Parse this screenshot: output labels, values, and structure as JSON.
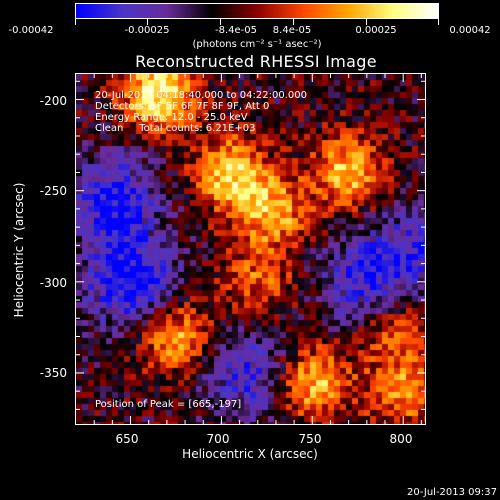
{
  "colorbar": {
    "ticks": [
      "-0.00042",
      "-0.00025",
      "-8.4e-05",
      "8.4e-05",
      "0.00025",
      "0.00042"
    ],
    "units": "(photons cm⁻² s⁻¹ asec⁻²)"
  },
  "plot": {
    "title": "Reconstructed RHESSI Image",
    "annotations": {
      "time": "20-Jul-2013 04:18:40.000 to 04:22:00.000",
      "detectors": "Detectors: 3F 5F 6F 7F 8F 9F, Att 0",
      "energy": "Energy Range: 12.0 - 25.0 keV",
      "clean": "Clean     Total counts: 6.21E+03",
      "peak": "Position of Peak = [665,-197]"
    },
    "xlabel": "Heliocentric X (arcsec)",
    "ylabel": "Heliocentric Y (arcsec)",
    "xticks": [
      "650",
      "700",
      "750",
      "800"
    ],
    "yticks": [
      "-200",
      "-250",
      "-300",
      "-350"
    ]
  },
  "chart_data": {
    "type": "heatmap",
    "title": "Reconstructed RHESSI Image",
    "xlabel": "Heliocentric X (arcsec)",
    "ylabel": "Heliocentric Y (arcsec)",
    "xlim": [
      620,
      812
    ],
    "ylim": [
      -378,
      -186
    ],
    "zlim": [
      -0.00042,
      0.00042
    ],
    "peak": [
      665,
      -197
    ],
    "colormap": [
      "#0000ff",
      "#4a35c8",
      "#6a2c9a",
      "#000000",
      "#8b0000",
      "#ff4500",
      "#ffa500",
      "#ffff80",
      "#ffffff"
    ],
    "hotspots": [
      {
        "x": 665,
        "y": -197,
        "value": 0.00042
      },
      {
        "x": 705,
        "y": -240,
        "value": 0.00036
      },
      {
        "x": 728,
        "y": -262,
        "value": 0.0003
      },
      {
        "x": 770,
        "y": -240,
        "value": 0.00033
      },
      {
        "x": 675,
        "y": -330,
        "value": 0.0003
      },
      {
        "x": 750,
        "y": -355,
        "value": 0.00034
      },
      {
        "x": 795,
        "y": -325,
        "value": 0.00022
      },
      {
        "x": 800,
        "y": -360,
        "value": 0.00026
      },
      {
        "x": 720,
        "y": -300,
        "value": 0.0002
      }
    ],
    "coldspots": [
      {
        "x": 640,
        "y": -255,
        "value": -0.0003
      },
      {
        "x": 780,
        "y": -300,
        "value": -0.00028
      },
      {
        "x": 650,
        "y": -300,
        "value": -0.00035
      },
      {
        "x": 715,
        "y": -350,
        "value": -0.00025
      },
      {
        "x": 810,
        "y": -280,
        "value": -0.0002
      }
    ]
  },
  "footer": {
    "datestamp": "20-Jul-2013 09:37"
  }
}
